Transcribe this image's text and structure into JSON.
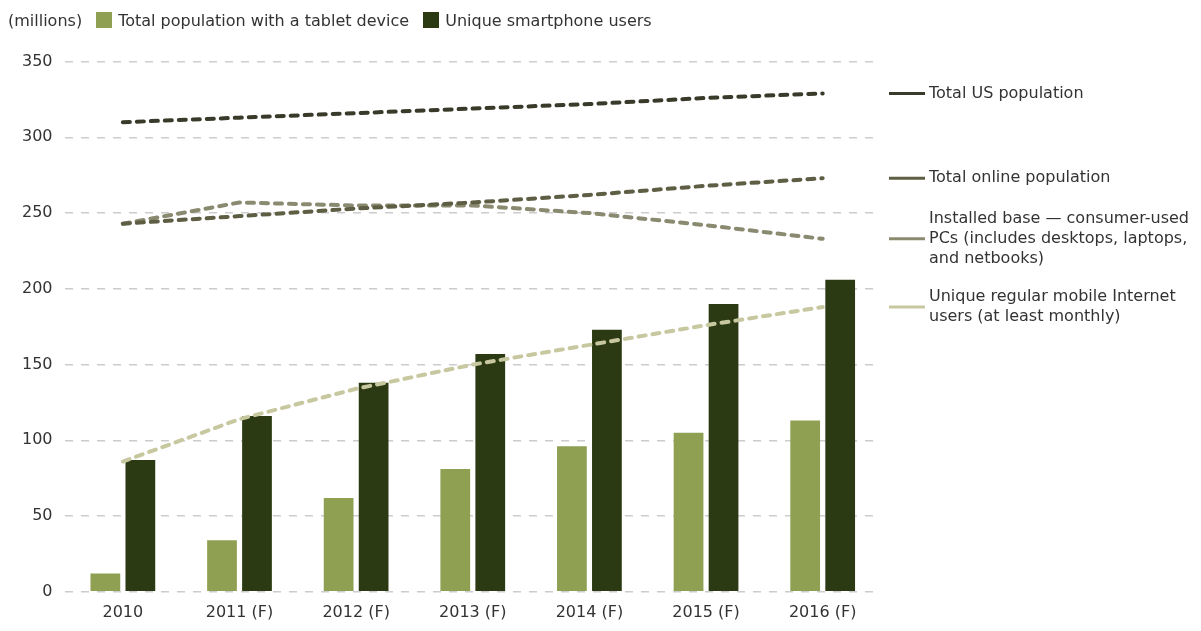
{
  "chart_data": {
    "type": "bar",
    "ylabel": "(millions)",
    "categories": [
      "2010",
      "2011 (F)",
      "2012 (F)",
      "2013 (F)",
      "2014 (F)",
      "2015 (F)",
      "2016 (F)"
    ],
    "series": [
      {
        "name": "Total population with a tablet device",
        "color": "#8fa052",
        "values": [
          12,
          34,
          62,
          81,
          96,
          105,
          113
        ]
      },
      {
        "name": "Unique smartphone users",
        "color": "#2b3a12",
        "values": [
          87,
          116,
          138,
          157,
          173,
          190,
          206
        ]
      },
      {
        "name": "Total US population",
        "type": "line",
        "color": "#3a3a2a",
        "values": [
          310,
          313,
          316,
          319,
          322,
          326,
          329
        ]
      },
      {
        "name": "Total online population",
        "type": "line",
        "color": "#5e5e44",
        "values": [
          243,
          248,
          253,
          257,
          262,
          268,
          273
        ]
      },
      {
        "name": "Installed base — consumer-used PCs (includes desktops, laptops, and netbooks)",
        "type": "line",
        "color": "#8a8a70",
        "values": [
          243,
          257,
          255,
          255,
          250,
          242,
          233
        ]
      },
      {
        "name": "Unique regular mobile Internet users (at least monthly)",
        "type": "line",
        "color": "#c8c8a0",
        "values": [
          86,
          114,
          134,
          150,
          163,
          176,
          188
        ]
      }
    ],
    "ylim": [
      0,
      350
    ],
    "yticks": [
      0,
      50,
      100,
      150,
      200,
      250,
      300,
      350
    ],
    "grid": "y",
    "legend": "top",
    "line_style": "dashed",
    "marker": "none"
  }
}
